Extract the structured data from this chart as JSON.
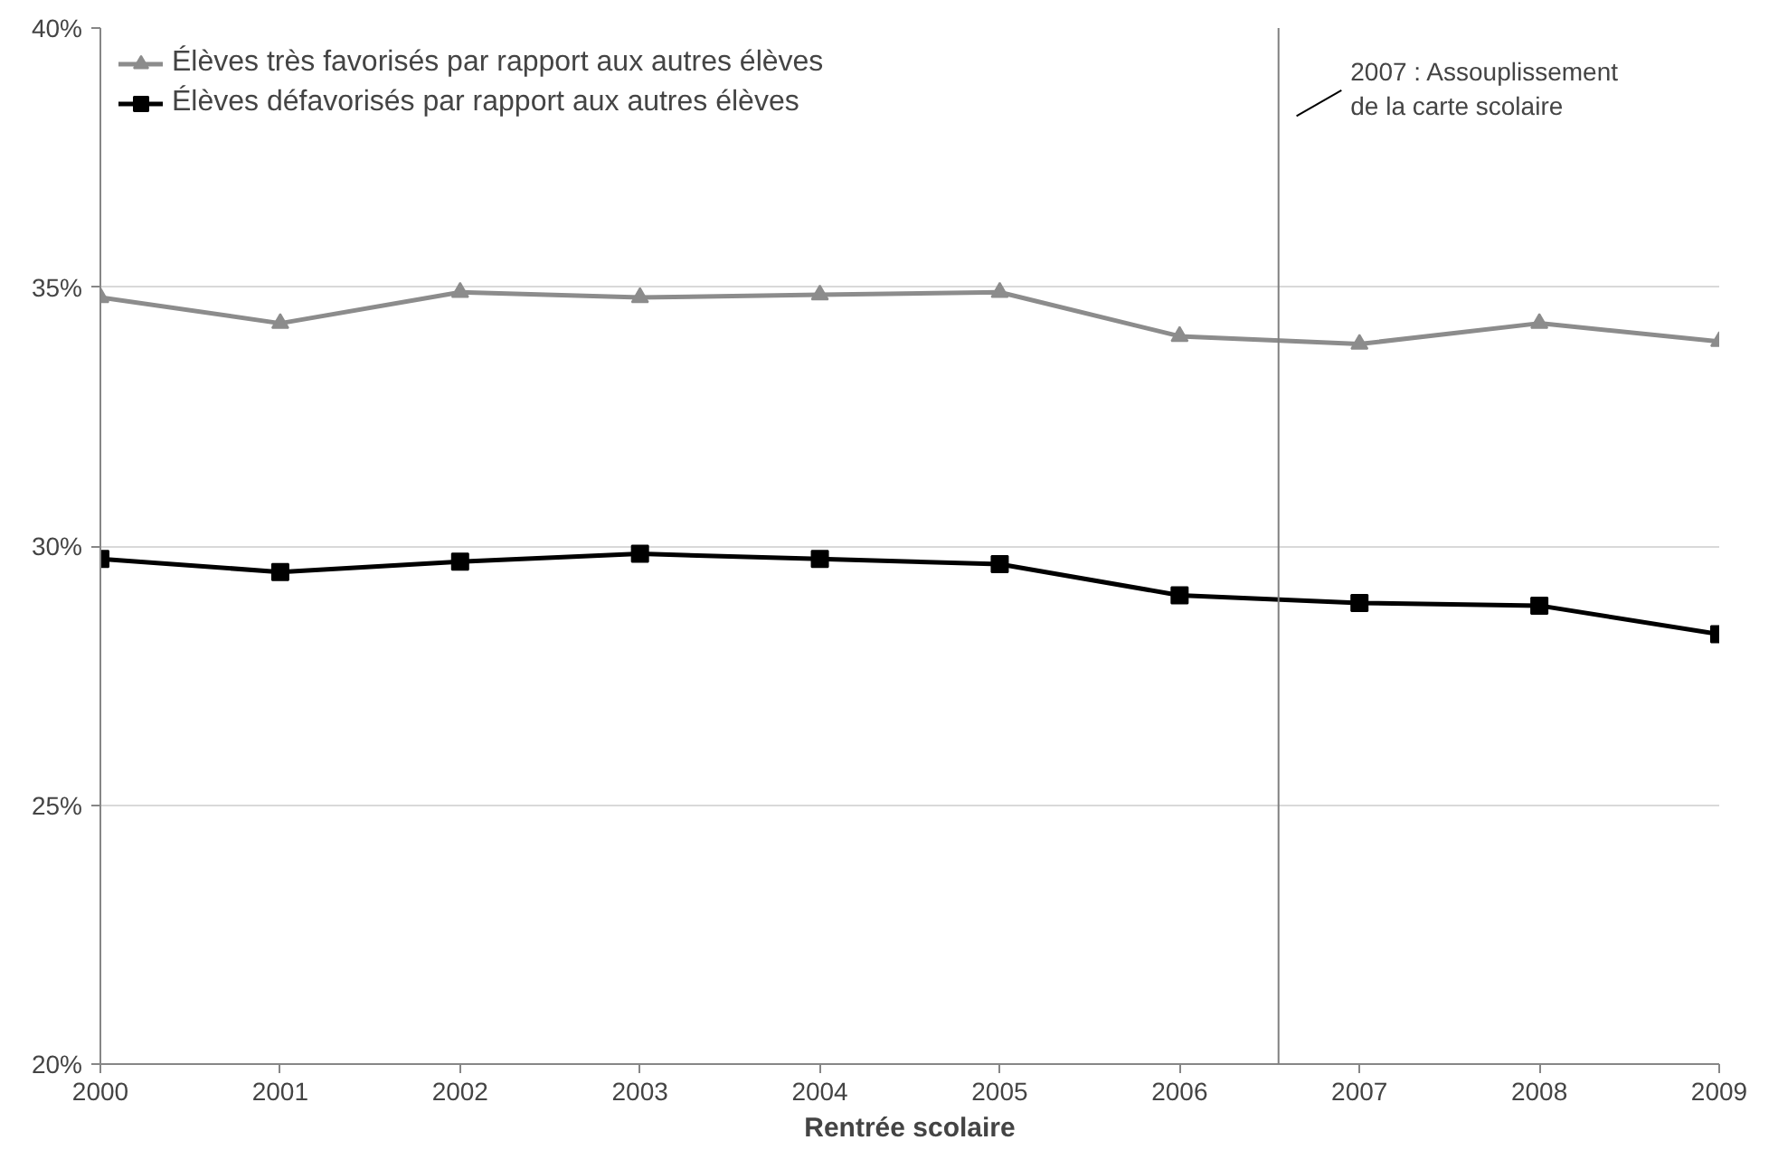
{
  "chart_data": {
    "type": "line",
    "xlabel": "Rentrée scolaire",
    "x": [
      2000,
      2001,
      2002,
      2003,
      2004,
      2005,
      2006,
      2007,
      2008,
      2009
    ],
    "series": [
      {
        "name": "Élèves très favorisés par rapport aux autres élèves",
        "color": "#8c8c8c",
        "marker": "triangle",
        "values": [
          34.8,
          34.3,
          34.9,
          34.8,
          34.85,
          34.9,
          34.05,
          33.9,
          34.3,
          33.95
        ]
      },
      {
        "name": "Élèves défavorisés par rapport aux autres élèves",
        "color": "#000000",
        "marker": "square",
        "values": [
          29.75,
          29.5,
          29.7,
          29.85,
          29.75,
          29.65,
          29.05,
          28.9,
          28.85,
          28.3
        ]
      }
    ],
    "xlim": [
      2000,
      2009
    ],
    "xticks": [
      2000,
      2001,
      2002,
      2003,
      2004,
      2005,
      2006,
      2007,
      2008,
      2009
    ],
    "ylim": [
      20,
      40
    ],
    "yticks": [
      {
        "value": 20,
        "label": "20%"
      },
      {
        "value": 25,
        "label": "25%"
      },
      {
        "value": 30,
        "label": "30%"
      },
      {
        "value": 35,
        "label": "35%"
      },
      {
        "value": 40,
        "label": "40%"
      }
    ],
    "ref_lines": [
      {
        "axis": "x",
        "value": 2006.55,
        "label": "2007 : Assouplissement\nde la carte scolaire",
        "color": "#808080"
      }
    ],
    "grid": "y",
    "legend": "top left",
    "line_style": "solid"
  }
}
